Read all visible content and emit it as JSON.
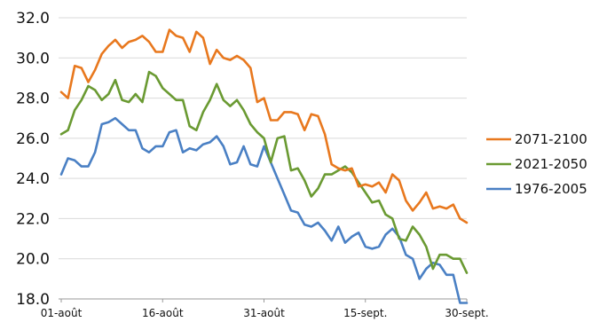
{
  "chart_data": {
    "type": "line",
    "ylim": [
      18.0,
      32.0
    ],
    "y_ticks": [
      "18.0",
      "20.0",
      "22.0",
      "24.0",
      "26.0",
      "28.0",
      "30.0",
      "32.0"
    ],
    "x_tick_labels": [
      "01-août",
      "16-août",
      "31-août",
      "15-sept.",
      "30-sept."
    ],
    "x": [
      "01-août",
      "02-août",
      "03-août",
      "04-août",
      "05-août",
      "06-août",
      "07-août",
      "08-août",
      "09-août",
      "10-août",
      "11-août",
      "12-août",
      "13-août",
      "14-août",
      "15-août",
      "16-août",
      "17-août",
      "18-août",
      "19-août",
      "20-août",
      "21-août",
      "22-août",
      "23-août",
      "24-août",
      "25-août",
      "26-août",
      "27-août",
      "28-août",
      "29-août",
      "30-août",
      "31-août",
      "01-sept.",
      "02-sept.",
      "03-sept.",
      "04-sept.",
      "05-sept.",
      "06-sept.",
      "07-sept.",
      "08-sept.",
      "09-sept.",
      "10-sept.",
      "11-sept.",
      "12-sept.",
      "13-sept.",
      "14-sept.",
      "15-sept.",
      "16-sept.",
      "17-sept.",
      "18-sept.",
      "19-sept.",
      "20-sept.",
      "21-sept.",
      "22-sept.",
      "23-sept.",
      "24-sept.",
      "25-sept.",
      "26-sept.",
      "27-sept.",
      "28-sept.",
      "29-sept.",
      "30-sept."
    ],
    "grid": true,
    "legend_position": "right",
    "series": [
      {
        "name": "2071-2100",
        "color": "#e8781e",
        "values": [
          28.3,
          28.0,
          29.6,
          29.5,
          28.8,
          29.4,
          30.2,
          30.6,
          30.9,
          30.5,
          30.8,
          30.9,
          31.1,
          30.8,
          30.3,
          30.3,
          31.4,
          31.1,
          31.0,
          30.3,
          31.3,
          31.0,
          29.7,
          30.4,
          30.0,
          29.9,
          30.1,
          29.9,
          29.5,
          27.8,
          28.0,
          26.9,
          26.9,
          27.3,
          27.3,
          27.2,
          26.4,
          27.2,
          27.1,
          26.2,
          24.7,
          24.5,
          24.4,
          24.5,
          23.6,
          23.7,
          23.6,
          23.8,
          23.3,
          24.2,
          23.9,
          22.9,
          22.4,
          22.8,
          23.3,
          22.5,
          22.6,
          22.5,
          22.7,
          22.0,
          21.8
        ]
      },
      {
        "name": "2021-2050",
        "color": "#6a9a32",
        "values": [
          26.2,
          26.4,
          27.4,
          27.9,
          28.6,
          28.4,
          27.9,
          28.2,
          28.9,
          27.9,
          27.8,
          28.2,
          27.8,
          29.3,
          29.1,
          28.5,
          28.2,
          27.9,
          27.9,
          26.6,
          26.4,
          27.3,
          27.9,
          28.7,
          27.9,
          27.6,
          27.9,
          27.4,
          26.7,
          26.3,
          26.0,
          24.8,
          26.0,
          26.1,
          24.4,
          24.5,
          23.9,
          23.1,
          23.5,
          24.2,
          24.2,
          24.4,
          24.6,
          24.3,
          23.8,
          23.3,
          22.8,
          22.9,
          22.2,
          22.0,
          21.0,
          20.9,
          21.6,
          21.2,
          20.6,
          19.5,
          20.2,
          20.2,
          20.0,
          20.0,
          19.3
        ]
      },
      {
        "name": "1976-2005",
        "color": "#4a80c4",
        "values": [
          24.2,
          25.0,
          24.9,
          24.6,
          24.6,
          25.3,
          26.7,
          26.8,
          27.0,
          26.7,
          26.4,
          26.4,
          25.5,
          25.3,
          25.6,
          25.6,
          26.3,
          26.4,
          25.3,
          25.5,
          25.4,
          25.7,
          25.8,
          26.1,
          25.6,
          24.7,
          24.8,
          25.6,
          24.7,
          24.6,
          25.6,
          24.8,
          24.0,
          23.2,
          22.4,
          22.3,
          21.7,
          21.6,
          21.8,
          21.4,
          20.9,
          21.6,
          20.8,
          21.1,
          21.3,
          20.6,
          20.5,
          20.6,
          21.2,
          21.5,
          21.1,
          20.2,
          20.0,
          19.0,
          19.5,
          19.8,
          19.7,
          19.2,
          19.2,
          17.8,
          17.8
        ]
      }
    ]
  }
}
